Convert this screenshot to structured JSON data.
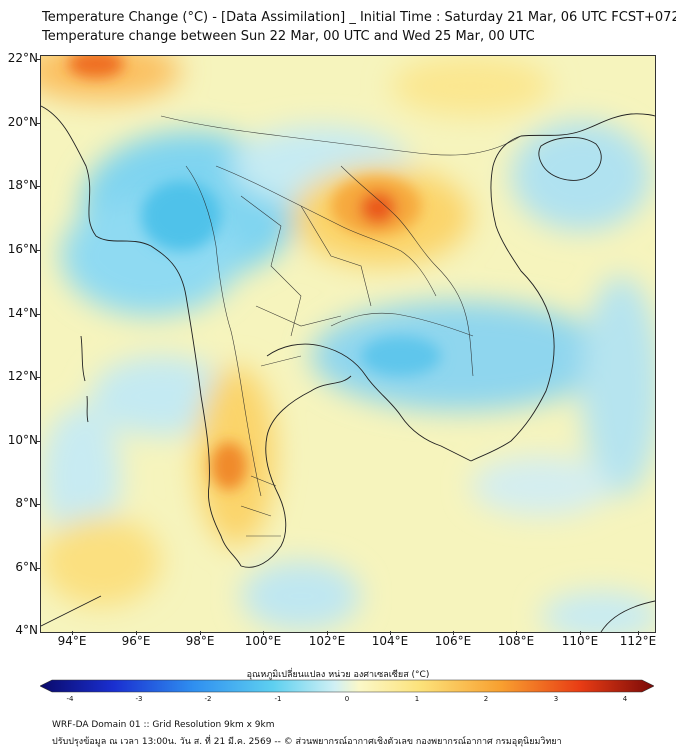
{
  "title_line1": "Temperature Change (°C) - [Data Assimilation] _ Initial Time : Saturday 21 Mar, 06 UTC FCST+072",
  "title_line2": "Temperature change between Sun 22 Mar, 00 UTC and Wed 25 Mar, 00 UTC",
  "lat_labels": [
    "22°N",
    "20°N",
    "18°N",
    "16°N",
    "14°N",
    "12°N",
    "10°N",
    "8°N",
    "6°N",
    "4°N"
  ],
  "lon_labels": [
    "94°E",
    "96°E",
    "98°E",
    "100°E",
    "102°E",
    "104°E",
    "106°E",
    "108°E",
    "110°E",
    "112°E"
  ],
  "colorbar": {
    "title": "อุณหภูมิเปลี่ยนแปลง หน่วย องศาเซลเซียส (°C)",
    "tick_labels": [
      "-4",
      "-3",
      "-2",
      "-1",
      "0",
      "1",
      "2",
      "3",
      "4"
    ],
    "min": -4,
    "max": 4
  },
  "footer_line1": "WRF-DA Domain 01 :: Grid Resolution 9km x 9km",
  "footer_line2": "ปรับปรุงข้อมูล ณ เวลา 13:00น. วัน ส. ที่ 21 มี.ค. 2569 -- © ส่วนพยากรณ์อากาศเชิงตัวเลข กองพยากรณ์อากาศ กรมอุตุนิยมวิทยา",
  "colors": {
    "background_field": "#f6f4bd",
    "cold_mid": "#66ccee",
    "cold_light": "#b4e4f0",
    "warm_light": "#fce07a",
    "warm_mid": "#f8a838",
    "warm_strong": "#ea5a1c",
    "coast": "#222222"
  }
}
